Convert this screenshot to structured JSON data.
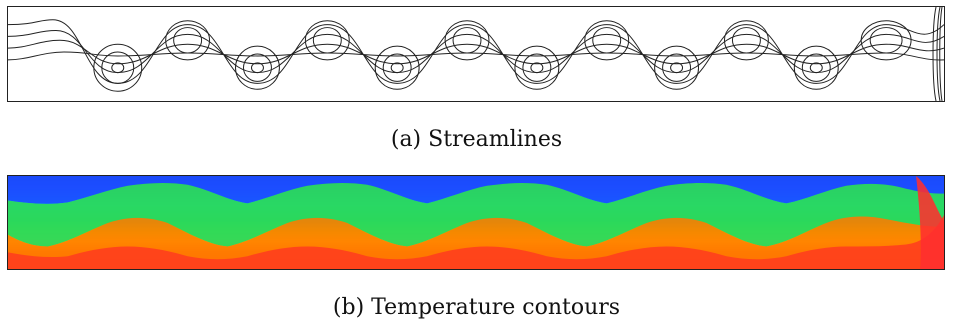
{
  "panels": [
    {
      "label": "(a)",
      "caption": "Streamlines"
    },
    {
      "label": "(b)",
      "caption": "Temperature contours"
    }
  ],
  "colors": {
    "frame": "#222222",
    "streamline": "#222222",
    "temperature_scale": [
      "#ff3b1f",
      "#ff7a00",
      "#ffd500",
      "#a8f000",
      "#22d95a",
      "#00c8ff",
      "#1c4dff",
      "#002aa8"
    ]
  }
}
